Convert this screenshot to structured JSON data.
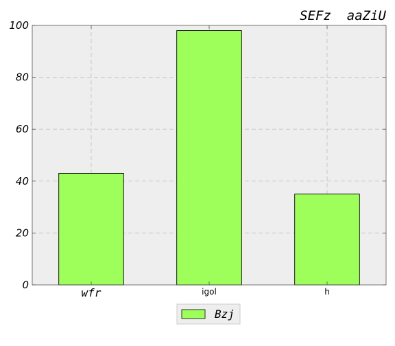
{
  "chart_data": {
    "type": "bar",
    "title": "SEFz  aaZiU",
    "categories": [
      "wfr",
      "igol",
      "h"
    ],
    "series": [
      {
        "name": "Bzj",
        "values": [
          43,
          98,
          35
        ],
        "color": "#9eff5a"
      }
    ],
    "ylim": [
      0,
      100
    ],
    "yticks": [
      "0",
      "20",
      "40",
      "60",
      "80",
      "100"
    ],
    "grid": true,
    "legend_position": "bottom-center",
    "background_color": "#eeeeee"
  }
}
